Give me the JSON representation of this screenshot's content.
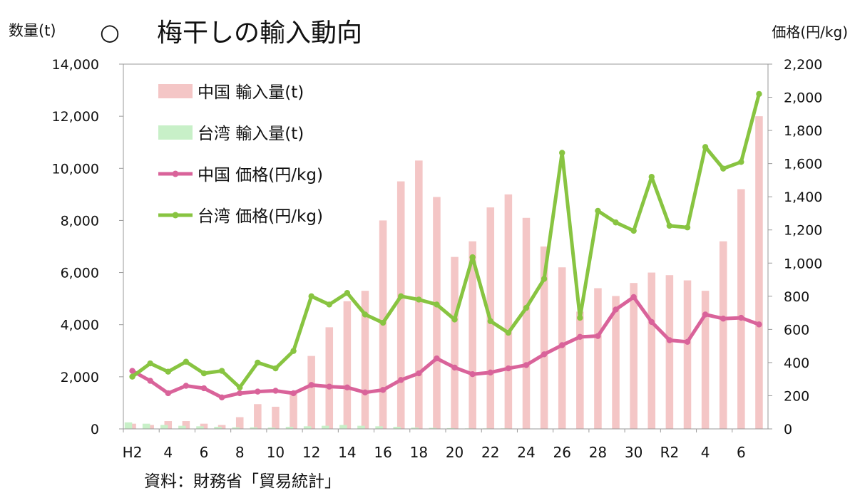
{
  "page": {
    "title_symbol": "○",
    "title": "梅干しの輸入動向",
    "left_unit": "数量(t)",
    "right_unit": "価格(円/kg)",
    "source": "資料：財務省「貿易統計」"
  },
  "chart_data": {
    "type": "bar",
    "title": "梅干しの輸入動向",
    "xlabel": "",
    "ylabel": "数量(t)",
    "y2label": "価格(円/kg)",
    "ylim": [
      0,
      14000
    ],
    "y2lim": [
      0,
      2200
    ],
    "yticks": [
      "0",
      "2,000",
      "4,000",
      "6,000",
      "8,000",
      "10,000",
      "12,000",
      "14,000"
    ],
    "y2ticks": [
      "0",
      "200",
      "400",
      "600",
      "800",
      "1,000",
      "1,200",
      "1,400",
      "1,600",
      "1,800",
      "2,000",
      "2,200"
    ],
    "x_tick_labels": [
      "H2",
      "4",
      "6",
      "8",
      "10",
      "12",
      "14",
      "16",
      "18",
      "20",
      "22",
      "24",
      "26",
      "28",
      "30",
      "R2",
      "4",
      "6"
    ],
    "grid": false,
    "legend_position": "top-left",
    "categories": [
      "H2",
      "H3",
      "H4",
      "H5",
      "H6",
      "H7",
      "H8",
      "H9",
      "H10",
      "H11",
      "H12",
      "H13",
      "H14",
      "H15",
      "H16",
      "H17",
      "H18",
      "H19",
      "H20",
      "H21",
      "H22",
      "H23",
      "H24",
      "H25",
      "H26",
      "H27",
      "H28",
      "H29",
      "H30",
      "R1",
      "R2",
      "R3",
      "R4",
      "R5",
      "R6",
      "R7"
    ],
    "series": [
      {
        "name": "中国 輸入量(t)",
        "axis": "left",
        "kind": "bar",
        "color": "#f4c6c6",
        "values": [
          200,
          150,
          300,
          300,
          200,
          150,
          450,
          950,
          850,
          1400,
          2800,
          3900,
          4900,
          5300,
          8000,
          9500,
          10300,
          8900,
          6600,
          7200,
          8500,
          9000,
          8100,
          7000,
          6200,
          4500,
          5400,
          5100,
          5600,
          6000,
          5900,
          5700,
          5300,
          7200,
          9200,
          12000
        ]
      },
      {
        "name": "台湾 輸入量(t)",
        "axis": "left",
        "kind": "bar",
        "color": "#c8f0c8",
        "values": [
          250,
          200,
          150,
          120,
          100,
          80,
          60,
          60,
          50,
          80,
          100,
          120,
          150,
          120,
          100,
          80,
          50,
          40,
          30,
          20,
          20,
          20,
          10,
          10,
          10,
          10,
          10,
          10,
          10,
          10,
          10,
          10,
          10,
          10,
          10,
          10
        ]
      },
      {
        "name": "中国 価格(円/kg)",
        "axis": "right",
        "kind": "line",
        "color": "#d9639a",
        "values": [
          350,
          290,
          215,
          260,
          245,
          190,
          215,
          225,
          230,
          215,
          265,
          255,
          250,
          220,
          235,
          295,
          335,
          425,
          370,
          330,
          340,
          365,
          385,
          450,
          505,
          555,
          560,
          720,
          795,
          645,
          535,
          525,
          690,
          665,
          670,
          630
        ]
      },
      {
        "name": "台湾 価格(円/kg)",
        "axis": "right",
        "kind": "line",
        "color": "#88c441",
        "values": [
          315,
          395,
          345,
          405,
          335,
          350,
          250,
          400,
          365,
          470,
          800,
          750,
          820,
          690,
          640,
          800,
          780,
          750,
          660,
          1035,
          650,
          580,
          730,
          905,
          1665,
          670,
          1315,
          1245,
          1195,
          1520,
          1225,
          1215,
          1700,
          1570,
          1610,
          2020
        ]
      }
    ]
  }
}
